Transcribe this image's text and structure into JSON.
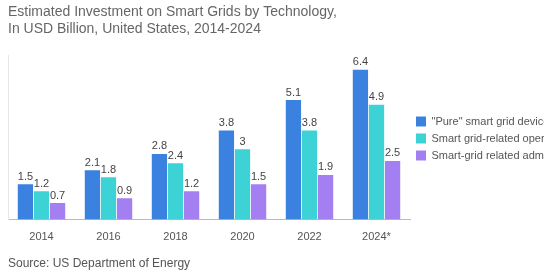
{
  "chart_data": {
    "type": "bar",
    "title": [
      "Estimated Investment on Smart Grids by Technology,",
      "In USD Billion, United States, 2014-2024"
    ],
    "source": "Source: US Department of Energy",
    "categories": [
      "2014",
      "2016",
      "2018",
      "2020",
      "2022",
      "2024*"
    ],
    "series": [
      {
        "name": "\"Pure\" smart grid devices/systems",
        "color": "#3b82e0",
        "values": [
          1.5,
          2.1,
          2.8,
          3.8,
          5.1,
          6.4
        ]
      },
      {
        "name": "Smart grid-related operations IT",
        "color": "#3dd3d6",
        "values": [
          1.2,
          1.8,
          2.4,
          3,
          3.8,
          4.9
        ]
      },
      {
        "name": "Smart-grid related administrative IT",
        "color": "#a47ff2",
        "values": [
          0.7,
          0.9,
          1.2,
          1.5,
          1.9,
          2.5
        ]
      }
    ],
    "ylim": [
      0,
      7
    ],
    "grid": false,
    "legend": "right",
    "data_labels": true,
    "tick_labels": "x"
  }
}
